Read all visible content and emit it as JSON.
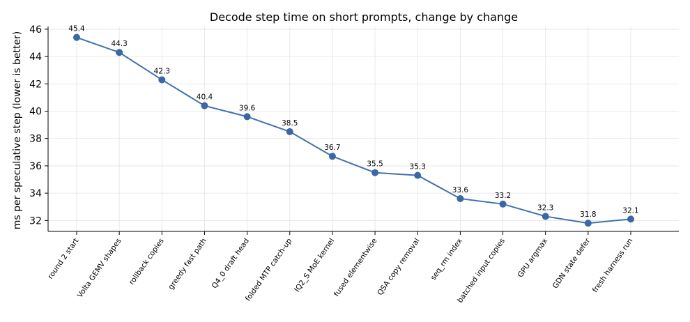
{
  "chart_data": {
    "type": "line",
    "title": "Decode step time on short prompts, change by change",
    "xlabel": "",
    "ylabel": "ms per speculative step (lower is better)",
    "categories": [
      "round 2 start",
      "Volta GEMV shapes",
      "rollback copies",
      "greedy fast path",
      "Q4_0 draft head",
      "folded MTP catch-up",
      "IQ2_S MoE kernel",
      "fused elementwise",
      "QSA copy removal",
      "seq_rm index",
      "batched input copies",
      "GPU argmax",
      "GDN state defer",
      "fresh harness run"
    ],
    "values": [
      45.4,
      44.3,
      42.3,
      40.4,
      39.6,
      38.5,
      36.7,
      35.5,
      35.3,
      33.6,
      33.2,
      32.3,
      31.8,
      32.1
    ],
    "ylim": [
      31.2,
      46.2
    ],
    "yticks": [
      32,
      34,
      36,
      38,
      40,
      42,
      44,
      46
    ],
    "grid": true,
    "line_color": "#4170ad",
    "marker_color": "#3a67a5"
  }
}
